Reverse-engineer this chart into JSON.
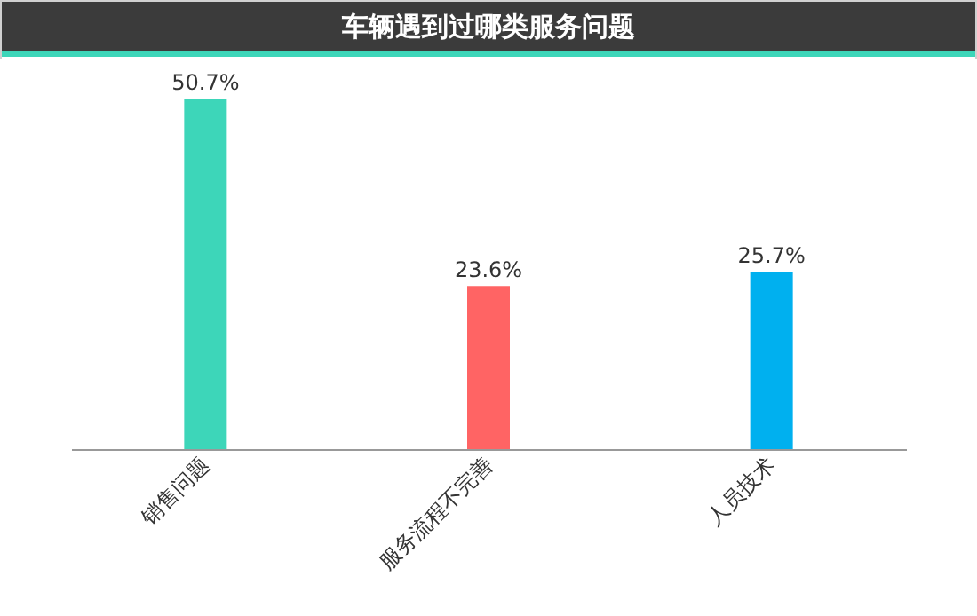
{
  "chart_data": {
    "type": "bar",
    "title": "车辆遇到过哪类服务问题",
    "categories": [
      "销售问题",
      "服务流程不完善",
      "人员技术"
    ],
    "values": [
      50.7,
      23.6,
      25.7
    ],
    "colors": [
      "#3dd6b9",
      "#ff6464",
      "#00b0ef"
    ],
    "value_labels": [
      "50.7%",
      "23.6%",
      "25.7%"
    ],
    "tick_labels": "x"
  }
}
